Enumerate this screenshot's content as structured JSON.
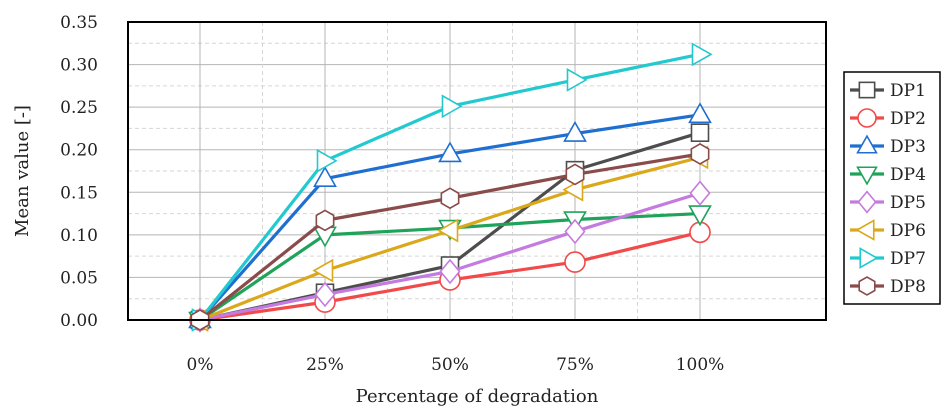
{
  "chart_data": {
    "type": "line",
    "categories": [
      "0%",
      "25%",
      "50%",
      "75%",
      "100%"
    ],
    "xlabel": "Percentage of degradation",
    "ylabel": "Mean value [-]",
    "ylim": [
      0,
      0.35
    ],
    "yticks": [
      "0.00",
      "0.05",
      "0.10",
      "0.15",
      "0.20",
      "0.25",
      "0.30",
      "0.35"
    ],
    "grid": true,
    "legend_position": "right",
    "series": [
      {
        "name": "DP1",
        "color": "#4d4d4d",
        "marker": "square",
        "values": [
          0,
          0.032,
          0.064,
          0.176,
          0.22
        ]
      },
      {
        "name": "DP2",
        "color": "#f24a4a",
        "marker": "circle",
        "values": [
          0,
          0.021,
          0.047,
          0.068,
          0.103
        ]
      },
      {
        "name": "DP3",
        "color": "#1f6fd1",
        "marker": "triangle-up",
        "values": [
          0,
          0.166,
          0.195,
          0.219,
          0.241
        ]
      },
      {
        "name": "DP4",
        "color": "#1fa35a",
        "marker": "triangle-down",
        "values": [
          0,
          0.1,
          0.108,
          0.118,
          0.125
        ]
      },
      {
        "name": "DP5",
        "color": "#c57ae0",
        "marker": "diamond",
        "values": [
          0,
          0.03,
          0.057,
          0.104,
          0.149
        ]
      },
      {
        "name": "DP6",
        "color": "#dba81c",
        "marker": "triangle-left",
        "values": [
          0,
          0.058,
          0.105,
          0.153,
          0.191
        ]
      },
      {
        "name": "DP7",
        "color": "#22c9cf",
        "marker": "triangle-right",
        "values": [
          0,
          0.187,
          0.251,
          0.282,
          0.312
        ]
      },
      {
        "name": "DP8",
        "color": "#8a4b4b",
        "marker": "hexagon",
        "values": [
          0,
          0.117,
          0.143,
          0.171,
          0.195
        ]
      }
    ]
  }
}
